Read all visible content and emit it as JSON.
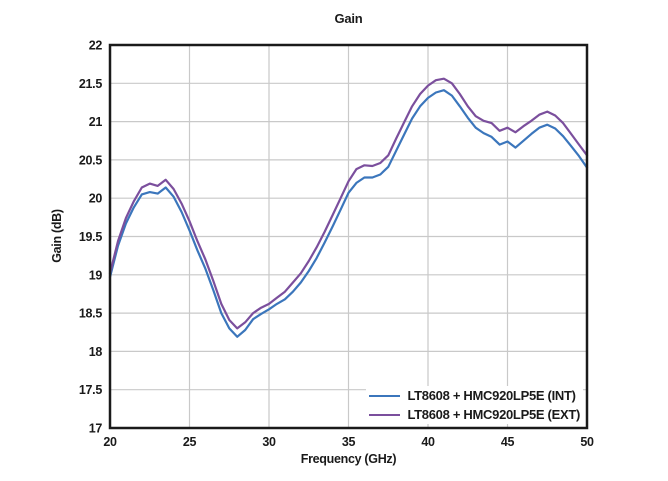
{
  "chart_data": {
    "type": "line",
    "title": "Gain",
    "xlabel": "Frequency (GHz)",
    "ylabel": "Gain (dB)",
    "xlim": [
      20,
      50
    ],
    "ylim": [
      17,
      22
    ],
    "x_ticks": [
      20,
      25,
      30,
      35,
      40,
      45,
      50
    ],
    "y_ticks": [
      17,
      17.5,
      18,
      18.5,
      19,
      19.5,
      20,
      20.5,
      21,
      21.5,
      22
    ],
    "grid": true,
    "legend_position": "lower right",
    "x_start": 20,
    "x_step": 0.5,
    "colors": {
      "background": "#ffffff",
      "frame": "#1a1a1a",
      "grid": "#c9c9c9",
      "text": "#1a1a1a"
    },
    "series": [
      {
        "name": "LT8608 + HMC920LP5E (INT)",
        "color": "#3b76bc",
        "values": [
          18.97,
          19.38,
          19.67,
          19.88,
          20.05,
          20.08,
          20.06,
          20.14,
          20.02,
          19.82,
          19.58,
          19.32,
          19.08,
          18.8,
          18.5,
          18.3,
          18.19,
          18.28,
          18.42,
          18.49,
          18.55,
          18.62,
          18.68,
          18.78,
          18.9,
          19.05,
          19.22,
          19.42,
          19.63,
          19.85,
          20.07,
          20.2,
          20.27,
          20.27,
          20.31,
          20.41,
          20.62,
          20.83,
          21.04,
          21.2,
          21.31,
          21.38,
          21.41,
          21.34,
          21.2,
          21.05,
          20.92,
          20.85,
          20.8,
          20.7,
          20.74,
          20.66,
          20.75,
          20.84,
          20.92,
          20.96,
          20.91,
          20.81,
          20.68,
          20.55,
          20.4
        ]
      },
      {
        "name": "LT8608 + HMC920LP5E (EXT)",
        "color": "#7b4f9d",
        "values": [
          19.02,
          19.44,
          19.74,
          19.96,
          20.14,
          20.19,
          20.16,
          20.24,
          20.12,
          19.93,
          19.7,
          19.44,
          19.2,
          18.92,
          18.62,
          18.41,
          18.3,
          18.38,
          18.5,
          18.57,
          18.62,
          18.7,
          18.78,
          18.9,
          19.02,
          19.18,
          19.36,
          19.56,
          19.78,
          20.0,
          20.22,
          20.38,
          20.43,
          20.42,
          20.46,
          20.56,
          20.78,
          20.99,
          21.2,
          21.36,
          21.47,
          21.54,
          21.56,
          21.5,
          21.36,
          21.2,
          21.07,
          21.01,
          20.98,
          20.88,
          20.92,
          20.86,
          20.94,
          21.01,
          21.09,
          21.13,
          21.08,
          20.98,
          20.84,
          20.7,
          20.56
        ]
      }
    ]
  }
}
